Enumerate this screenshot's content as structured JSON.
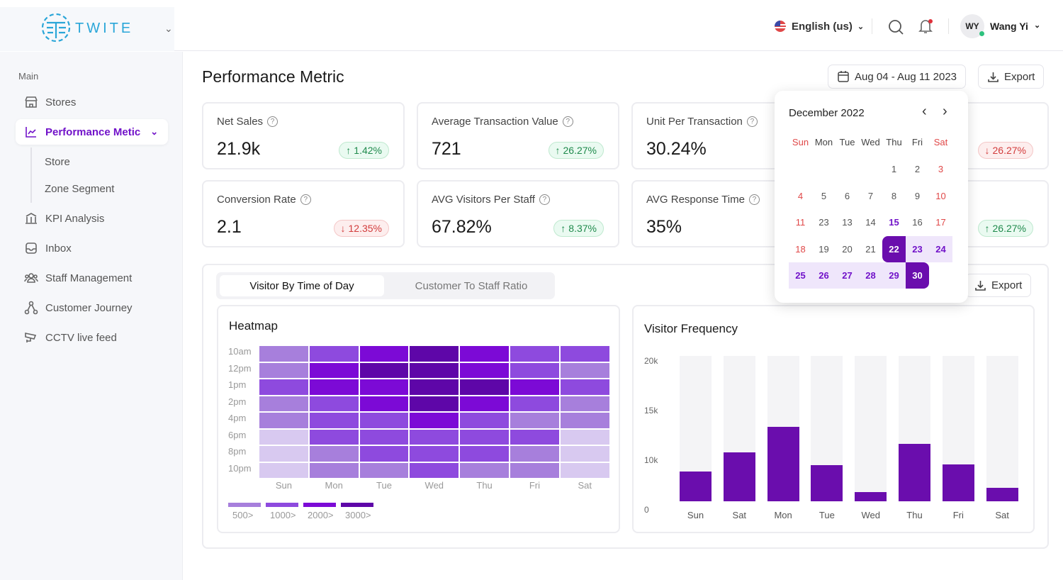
{
  "brand": {
    "name": "TWITE"
  },
  "header": {
    "language": "English (us)",
    "user_initials": "WY",
    "user_name": "Wang Yi"
  },
  "sidebar": {
    "section": "Main",
    "items": [
      {
        "label": "Stores",
        "icon": "store-icon"
      },
      {
        "label": "Performance Metic",
        "icon": "chart-line-icon",
        "active": true,
        "sub": [
          "Store",
          "Zone Segment"
        ]
      },
      {
        "label": "KPI Analysis",
        "icon": "bank-icon"
      },
      {
        "label": "Inbox",
        "icon": "inbox-icon"
      },
      {
        "label": "Staff Management",
        "icon": "users-icon"
      },
      {
        "label": "Customer Journey",
        "icon": "journey-icon"
      },
      {
        "label": "CCTV live feed",
        "icon": "cctv-icon"
      }
    ]
  },
  "page": {
    "title": "Performance Metric",
    "date_range": "Aug 04 - Aug 11 2023",
    "export": "Export"
  },
  "metrics": [
    {
      "title": "Net Sales",
      "value": "21.9k",
      "change": "1.42%",
      "dir": "up"
    },
    {
      "title": "Average Transaction Value",
      "value": "721",
      "change": "26.27%",
      "dir": "up"
    },
    {
      "title": "Unit Per Transaction",
      "value": "30.24%",
      "change": "",
      "dir": "down"
    },
    {
      "title": "",
      "value": "",
      "change": "26.27%",
      "dir": "down"
    },
    {
      "title": "Conversion Rate",
      "value": "2.1",
      "change": "12.35%",
      "dir": "down"
    },
    {
      "title": "AVG Visitors Per Staff",
      "value": "67.82%",
      "change": "8.37%",
      "dir": "up"
    },
    {
      "title": "AVG Response Time",
      "value": "35%",
      "change": "",
      "dir": "down"
    },
    {
      "title": "",
      "value": "",
      "change": "26.27%",
      "dir": "up"
    }
  ],
  "calendar": {
    "month": "December 2022",
    "weekdays": [
      "Sun",
      "Mon",
      "Tue",
      "Wed",
      "Thu",
      "Fri",
      "Sat"
    ],
    "weeks": [
      [
        "",
        "",
        "",
        "",
        "1",
        "2",
        "3"
      ],
      [
        "4",
        "5",
        "6",
        "7",
        "8",
        "9",
        "10"
      ],
      [
        "11",
        "23",
        "13",
        "14",
        "15",
        "16",
        "17"
      ],
      [
        "18",
        "19",
        "20",
        "21",
        "22",
        "23",
        "24"
      ],
      [
        "25",
        "26",
        "27",
        "28",
        "29",
        "30",
        ""
      ]
    ],
    "today": "15",
    "range_start": "22",
    "range_end": "30"
  },
  "tabs": [
    "Visitor By Time of Day",
    "Customer To Staff Ratio"
  ],
  "panel_export": "Export",
  "colors": {
    "accent": "#7112c9",
    "levels": [
      "#d8c9f0",
      "#a77fdc",
      "#8e4ade",
      "#7c0ad6",
      "#5e06a8"
    ]
  },
  "chart_data": [
    {
      "type": "heatmap",
      "title": "Heatmap",
      "x": [
        "Sun",
        "Mon",
        "Tue",
        "Wed",
        "Thu",
        "Fri",
        "Sat"
      ],
      "y": [
        "10am",
        "12pm",
        "1pm",
        "2pm",
        "4pm",
        "6pm",
        "8pm",
        "10pm"
      ],
      "levels": [
        [
          1,
          2,
          3,
          4,
          3,
          2,
          2
        ],
        [
          1,
          3,
          4,
          4,
          3,
          2,
          1
        ],
        [
          2,
          3,
          3,
          4,
          4,
          3,
          2
        ],
        [
          1,
          2,
          3,
          4,
          3,
          2,
          1
        ],
        [
          1,
          2,
          2,
          3,
          2,
          1,
          1
        ],
        [
          0,
          2,
          2,
          2,
          2,
          2,
          0
        ],
        [
          0,
          1,
          2,
          2,
          2,
          1,
          0
        ],
        [
          0,
          1,
          1,
          2,
          1,
          1,
          0
        ]
      ],
      "legend": [
        "500>",
        "1000>",
        "2000>",
        "3000>"
      ]
    },
    {
      "type": "bar",
      "title": "Visitor Frequency",
      "categories": [
        "Sun",
        "Sat",
        "Mon",
        "Tue",
        "Wed",
        "Thu",
        "Fri",
        "Sat"
      ],
      "values": [
        4100,
        6700,
        10200,
        5000,
        1300,
        7900,
        5100,
        1900
      ],
      "yticks": [
        "20k",
        "15k",
        "10k",
        "0"
      ],
      "ylim": [
        0,
        20000
      ]
    }
  ]
}
